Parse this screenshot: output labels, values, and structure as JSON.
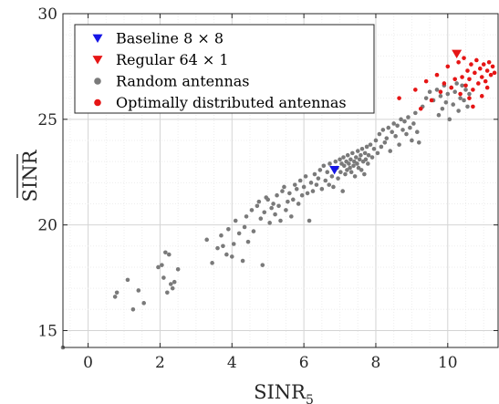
{
  "chart_data": {
    "type": "scatter",
    "xlabel": "SINR",
    "xlabel_sub": "5",
    "ylabel": "SINR",
    "xlim": [
      -0.7,
      11.4
    ],
    "ylim": [
      14.2,
      30
    ],
    "xticks": [
      0,
      2,
      4,
      6,
      8,
      10
    ],
    "yticks": [
      15,
      20,
      25,
      30
    ],
    "grid": true,
    "legend_position": "top-left",
    "series": [
      {
        "name": "Baseline 8 × 8",
        "marker": "triangle-down",
        "color": "#1515e6",
        "points": [
          [
            6.85,
            22.6
          ]
        ]
      },
      {
        "name": "Regular 64 × 1",
        "marker": "triangle-down",
        "color": "#e61515",
        "points": [
          [
            10.25,
            28.1
          ]
        ]
      },
      {
        "name": "Random antennas",
        "marker": "circle",
        "color": "#7a7a7a",
        "points": [
          [
            -0.7,
            14.2
          ],
          [
            0.75,
            16.6
          ],
          [
            0.8,
            16.8
          ],
          [
            1.1,
            17.4
          ],
          [
            1.25,
            16.0
          ],
          [
            1.4,
            16.9
          ],
          [
            1.55,
            16.3
          ],
          [
            1.95,
            18.0
          ],
          [
            2.05,
            18.1
          ],
          [
            2.1,
            17.5
          ],
          [
            2.15,
            18.7
          ],
          [
            2.2,
            16.8
          ],
          [
            2.25,
            18.6
          ],
          [
            2.3,
            17.2
          ],
          [
            2.35,
            17.0
          ],
          [
            2.4,
            17.3
          ],
          [
            2.5,
            17.9
          ],
          [
            3.3,
            19.3
          ],
          [
            3.45,
            18.2
          ],
          [
            3.6,
            18.9
          ],
          [
            3.7,
            19.5
          ],
          [
            3.75,
            19.0
          ],
          [
            3.85,
            18.6
          ],
          [
            3.9,
            19.8
          ],
          [
            4.0,
            18.5
          ],
          [
            4.05,
            19.1
          ],
          [
            4.1,
            20.2
          ],
          [
            4.2,
            19.6
          ],
          [
            4.3,
            18.3
          ],
          [
            4.35,
            19.9
          ],
          [
            4.4,
            20.4
          ],
          [
            4.45,
            19.2
          ],
          [
            4.55,
            20.7
          ],
          [
            4.6,
            19.7
          ],
          [
            4.7,
            20.9
          ],
          [
            4.75,
            21.1
          ],
          [
            4.8,
            20.3
          ],
          [
            4.85,
            18.1
          ],
          [
            4.9,
            20.6
          ],
          [
            4.95,
            21.3
          ],
          [
            5.0,
            21.2
          ],
          [
            5.05,
            20.1
          ],
          [
            5.1,
            20.8
          ],
          [
            5.15,
            21.0
          ],
          [
            5.2,
            20.5
          ],
          [
            5.25,
            21.4
          ],
          [
            5.3,
            20.9
          ],
          [
            5.35,
            20.2
          ],
          [
            5.4,
            21.6
          ],
          [
            5.45,
            21.8
          ],
          [
            5.5,
            20.7
          ],
          [
            5.55,
            21.1
          ],
          [
            5.6,
            21.5
          ],
          [
            5.65,
            20.4
          ],
          [
            5.7,
            21.2
          ],
          [
            5.75,
            21.9
          ],
          [
            5.8,
            21.7
          ],
          [
            5.85,
            21.0
          ],
          [
            5.9,
            22.1
          ],
          [
            5.95,
            21.4
          ],
          [
            6.0,
            21.8
          ],
          [
            6.05,
            22.3
          ],
          [
            6.1,
            21.5
          ],
          [
            6.15,
            20.2
          ],
          [
            6.2,
            22.0
          ],
          [
            6.25,
            21.6
          ],
          [
            6.3,
            22.4
          ],
          [
            6.35,
            21.9
          ],
          [
            6.4,
            22.2
          ],
          [
            6.45,
            22.6
          ],
          [
            6.5,
            21.7
          ],
          [
            6.55,
            22.8
          ],
          [
            6.6,
            22.1
          ],
          [
            6.65,
            22.5
          ],
          [
            6.7,
            21.9
          ],
          [
            6.72,
            22.9
          ],
          [
            6.78,
            22.3
          ],
          [
            6.82,
            21.8
          ],
          [
            6.88,
            23.0
          ],
          [
            6.92,
            22.7
          ],
          [
            6.95,
            22.2
          ],
          [
            7.0,
            23.1
          ],
          [
            7.02,
            22.5
          ],
          [
            7.05,
            22.9
          ],
          [
            7.08,
            21.6
          ],
          [
            7.1,
            23.2
          ],
          [
            7.12,
            22.8
          ],
          [
            7.15,
            22.4
          ],
          [
            7.18,
            23.0
          ],
          [
            7.2,
            22.6
          ],
          [
            7.22,
            23.3
          ],
          [
            7.25,
            22.9
          ],
          [
            7.28,
            22.7
          ],
          [
            7.3,
            23.1
          ],
          [
            7.32,
            22.5
          ],
          [
            7.35,
            23.4
          ],
          [
            7.38,
            22.8
          ],
          [
            7.4,
            23.0
          ],
          [
            7.42,
            22.3
          ],
          [
            7.45,
            23.2
          ],
          [
            7.48,
            22.9
          ],
          [
            7.5,
            23.5
          ],
          [
            7.52,
            22.7
          ],
          [
            7.55,
            23.1
          ],
          [
            7.58,
            23.3
          ],
          [
            7.6,
            22.6
          ],
          [
            7.62,
            23.6
          ],
          [
            7.65,
            23.0
          ],
          [
            7.68,
            22.4
          ],
          [
            7.7,
            23.4
          ],
          [
            7.72,
            23.1
          ],
          [
            7.75,
            23.7
          ],
          [
            7.78,
            22.9
          ],
          [
            7.8,
            23.3
          ],
          [
            7.85,
            23.8
          ],
          [
            7.9,
            23.2
          ],
          [
            7.95,
            23.6
          ],
          [
            8.0,
            24.0
          ],
          [
            8.05,
            23.4
          ],
          [
            8.1,
            24.3
          ],
          [
            8.15,
            23.7
          ],
          [
            8.2,
            24.5
          ],
          [
            8.25,
            23.9
          ],
          [
            8.3,
            24.1
          ],
          [
            8.35,
            24.6
          ],
          [
            8.4,
            23.5
          ],
          [
            8.45,
            24.4
          ],
          [
            8.5,
            24.8
          ],
          [
            8.55,
            24.2
          ],
          [
            8.6,
            24.7
          ],
          [
            8.65,
            23.8
          ],
          [
            8.7,
            25.0
          ],
          [
            8.75,
            24.5
          ],
          [
            8.8,
            24.9
          ],
          [
            8.85,
            24.3
          ],
          [
            8.9,
            25.1
          ],
          [
            8.95,
            24.6
          ],
          [
            9.0,
            24.0
          ],
          [
            9.05,
            24.8
          ],
          [
            9.1,
            25.3
          ],
          [
            9.15,
            24.4
          ],
          [
            9.2,
            23.9
          ],
          [
            9.3,
            25.6
          ],
          [
            9.4,
            26.0
          ],
          [
            9.5,
            26.3
          ],
          [
            9.6,
            25.9
          ],
          [
            9.7,
            26.4
          ],
          [
            9.75,
            25.2
          ],
          [
            9.8,
            26.1
          ],
          [
            9.85,
            25.5
          ],
          [
            9.9,
            26.6
          ],
          [
            9.95,
            25.8
          ],
          [
            10.0,
            26.2
          ],
          [
            10.05,
            25.0
          ],
          [
            10.1,
            26.5
          ],
          [
            10.15,
            25.7
          ],
          [
            10.2,
            26.3
          ],
          [
            10.25,
            26.7
          ],
          [
            10.3,
            25.4
          ],
          [
            10.35,
            26.0
          ],
          [
            10.4,
            26.6
          ],
          [
            10.45,
            25.9
          ],
          [
            10.5,
            26.4
          ],
          [
            10.55,
            25.6
          ],
          [
            10.6,
            26.2
          ]
        ]
      },
      {
        "name": "Optimally distributed antennas",
        "marker": "circle",
        "color": "#e61515",
        "points": [
          [
            8.65,
            26.0
          ],
          [
            9.1,
            26.4
          ],
          [
            9.25,
            25.5
          ],
          [
            9.4,
            26.8
          ],
          [
            9.55,
            25.9
          ],
          [
            9.7,
            27.1
          ],
          [
            9.8,
            26.3
          ],
          [
            9.9,
            26.7
          ],
          [
            10.0,
            27.5
          ],
          [
            10.1,
            26.5
          ],
          [
            10.2,
            26.9
          ],
          [
            10.3,
            27.7
          ],
          [
            10.35,
            26.2
          ],
          [
            10.4,
            27.0
          ],
          [
            10.45,
            27.9
          ],
          [
            10.5,
            26.6
          ],
          [
            10.55,
            27.3
          ],
          [
            10.6,
            26.9
          ],
          [
            10.65,
            27.6
          ],
          [
            10.7,
            26.4
          ],
          [
            10.75,
            27.2
          ],
          [
            10.8,
            27.8
          ],
          [
            10.85,
            26.7
          ],
          [
            10.9,
            27.4
          ],
          [
            10.95,
            27.0
          ],
          [
            11.0,
            27.6
          ],
          [
            11.05,
            26.8
          ],
          [
            11.1,
            27.3
          ],
          [
            11.15,
            27.7
          ],
          [
            11.2,
            27.1
          ],
          [
            11.25,
            27.5
          ],
          [
            11.3,
            27.2
          ],
          [
            10.7,
            25.6
          ],
          [
            10.95,
            26.1
          ],
          [
            10.6,
            26.0
          ],
          [
            11.1,
            26.5
          ]
        ]
      }
    ]
  }
}
